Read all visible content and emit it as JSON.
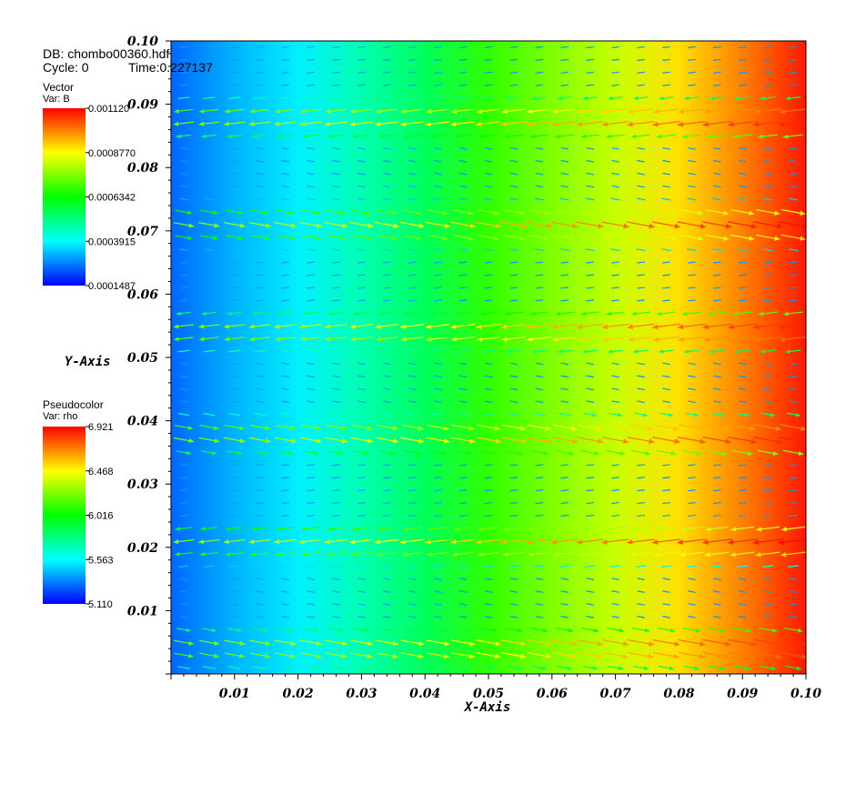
{
  "header": {
    "db_label": "DB: chombo00360.hdf",
    "cycle_label": "Cycle: 0",
    "time_label": "Time:0.227137"
  },
  "legends": {
    "vector": {
      "title": "Vector",
      "var": "Var: B",
      "ticks": [
        "0.001120",
        "0.0008770",
        "0.0006342",
        "0.0003915",
        "0.0001487"
      ],
      "min": 0.0001487,
      "max": 0.00112
    },
    "pseudocolor": {
      "title": "Pseudocolor",
      "var": "Var: rho",
      "ticks": [
        "6.921",
        "6.468",
        "6.016",
        "5.563",
        "5.110"
      ],
      "min": 5.11,
      "max": 6.921
    }
  },
  "chart_data": {
    "type": "heatmap",
    "xlabel": "X-Axis",
    "ylabel": "Y-Axis",
    "xlim": [
      0,
      0.1
    ],
    "ylim": [
      0,
      0.1
    ],
    "x_ticks": [
      "0.01",
      "0.02",
      "0.03",
      "0.04",
      "0.05",
      "0.06",
      "0.07",
      "0.08",
      "0.09",
      "0.10"
    ],
    "y_ticks": [
      "0.01",
      "0.02",
      "0.03",
      "0.04",
      "0.05",
      "0.06",
      "0.07",
      "0.08",
      "0.09",
      "0.10"
    ],
    "field_rho": {
      "x": [
        0.0,
        0.01,
        0.02,
        0.03,
        0.04,
        0.05,
        0.06,
        0.07,
        0.08,
        0.09,
        0.1
      ],
      "values": [
        5.18,
        5.35,
        5.55,
        5.72,
        5.88,
        6.02,
        6.15,
        6.3,
        6.5,
        6.75,
        6.92
      ]
    },
    "vector_B": {
      "description_of_layout": "periodic bands in y",
      "band_period_y": 0.0167,
      "magnitude_range": [
        0.0001487,
        0.00112
      ]
    }
  }
}
